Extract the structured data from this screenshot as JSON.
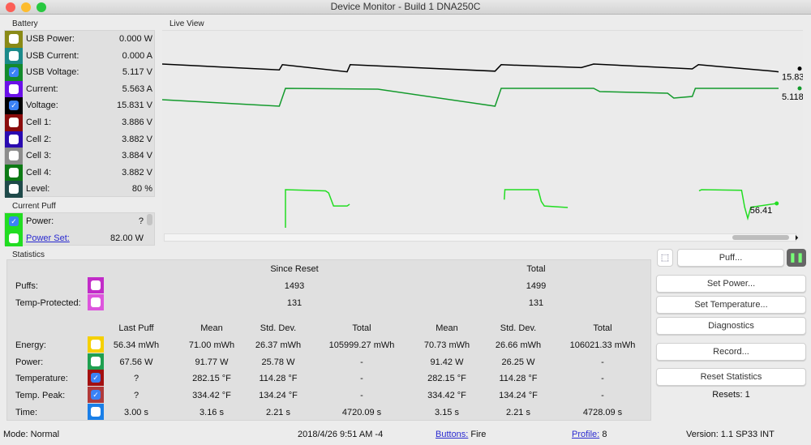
{
  "window": {
    "title": "Device Monitor - Build 1 DNA250C"
  },
  "battery": {
    "title": "Battery",
    "rows": [
      {
        "label": "USB Power:",
        "value": "0.000 W",
        "color": "#8a8a16",
        "checked": false
      },
      {
        "label": "USB Current:",
        "value": "0.000 A",
        "color": "#1b8a8a",
        "checked": false
      },
      {
        "label": "USB Voltage:",
        "value": "5.117 V",
        "color": "#138a2c",
        "checked": true
      },
      {
        "label": "Current:",
        "value": "5.563 A",
        "color": "#6a10e8",
        "checked": false
      },
      {
        "label": "Voltage:",
        "value": "15.831 V",
        "color": "#000000",
        "checked": true
      },
      {
        "label": "Cell 1:",
        "value": "3.886 V",
        "color": "#8a0c0c",
        "checked": false
      },
      {
        "label": "Cell 2:",
        "value": "3.882 V",
        "color": "#2a0ab0",
        "checked": false
      },
      {
        "label": "Cell 3:",
        "value": "3.884 V",
        "color": "#8c8c8c",
        "checked": false
      },
      {
        "label": "Cell 4:",
        "value": "3.882 V",
        "color": "#0d7a15",
        "checked": false
      },
      {
        "label": "Level:",
        "value": "80 %",
        "color": "#1f4a4a",
        "checked": false
      }
    ]
  },
  "current_puff": {
    "title": "Current Puff",
    "rows": [
      {
        "label": "Power:",
        "value": "?",
        "color": "#22dd22",
        "checked": true,
        "link": false
      },
      {
        "label": "Power Set:",
        "value": "82.00 W",
        "color": "#22dd22",
        "checked": false,
        "link": true
      }
    ]
  },
  "live_view": {
    "title": "Live View",
    "labels": {
      "voltage": "15.83",
      "usb_voltage": "5.118",
      "power": "56.41"
    },
    "series": {
      "voltage": {
        "color": "#000000",
        "points": [
          [
            0,
            16.1
          ],
          [
            19,
            15.92
          ],
          [
            19.5,
            16.08
          ],
          [
            30,
            15.86
          ],
          [
            30.5,
            16.08
          ],
          [
            54,
            15.88
          ],
          [
            55,
            16.08
          ],
          [
            68,
            15.99
          ],
          [
            70,
            16.1
          ],
          [
            86,
            15.95
          ],
          [
            87,
            16.08
          ],
          [
            99,
            15.88
          ],
          [
            100,
            15.86
          ]
        ]
      },
      "usb_voltage": {
        "color": "#139a2c",
        "points": [
          [
            0,
            5.048
          ],
          [
            19,
            5.008
          ],
          [
            20,
            5.118
          ],
          [
            35,
            5.113
          ],
          [
            54,
            5.008
          ],
          [
            55,
            5.118
          ],
          [
            70,
            5.118
          ],
          [
            71,
            5.098
          ],
          [
            82,
            5.088
          ],
          [
            83,
            5.058
          ],
          [
            86,
            5.068
          ],
          [
            86.5,
            5.118
          ],
          [
            100,
            5.118
          ]
        ]
      },
      "power": {
        "color": "#22dd22",
        "segments": [
          [
            [
              20,
              14.7
            ],
            [
              20,
              80
            ],
            [
              26.5,
              78
            ],
            [
              27,
              74.5
            ],
            [
              27.8,
              52
            ],
            [
              30,
              52
            ],
            [
              30.4,
              55
            ]
          ],
          [
            [
              55.5,
              63
            ],
            [
              55.6,
              80
            ],
            [
              61,
              80
            ],
            [
              61.5,
              60
            ],
            [
              62,
              52
            ],
            [
              65.8,
              49.5
            ]
          ],
          [
            [
              87.1,
              78
            ],
            [
              87.5,
              80
            ],
            [
              94,
              79
            ],
            [
              94.5,
              50
            ],
            [
              95,
              31
            ],
            [
              95.5,
              50
            ],
            [
              99.7,
              56.41
            ]
          ]
        ]
      }
    }
  },
  "statistics": {
    "title": "Statistics",
    "since_reset": "Since Reset",
    "total": "Total",
    "counts": [
      {
        "label": "Puffs:",
        "color": "#c22cc8",
        "since": "1493",
        "total": "1499"
      },
      {
        "label": "Temp-Protected:",
        "color": "#dd55dd",
        "since": "131",
        "total": "131"
      }
    ],
    "headers": [
      "Last Puff",
      "Mean",
      "Std. Dev.",
      "Total",
      "Mean",
      "Std. Dev.",
      "Total"
    ],
    "rows": [
      {
        "label": "Energy:",
        "color": "#f5d000",
        "checked": false,
        "values": [
          "56.34 mWh",
          "71.00 mWh",
          "26.37 mWh",
          "105999.27 mWh",
          "70.73 mWh",
          "26.66 mWh",
          "106021.33 mWh"
        ]
      },
      {
        "label": "Power:",
        "color": "#1fa050",
        "checked": false,
        "values": [
          "67.56 W",
          "91.77 W",
          "25.78 W",
          "-",
          "91.42 W",
          "26.25 W",
          "-"
        ]
      },
      {
        "label": "Temperature:",
        "color": "#a31010",
        "checked": true,
        "values": [
          "?",
          "282.15 °F",
          "114.28 °F",
          "-",
          "282.15 °F",
          "114.28 °F",
          "-"
        ]
      },
      {
        "label": "Temp. Peak:",
        "color": "#b03a3a",
        "checked": true,
        "values": [
          "?",
          "334.42 °F",
          "134.24 °F",
          "-",
          "334.42 °F",
          "134.24 °F",
          "-"
        ]
      },
      {
        "label": "Time:",
        "color": "#1a7fe8",
        "checked": false,
        "values": [
          "3.00 s",
          "3.16 s",
          "2.21 s",
          "4720.09 s",
          "3.15 s",
          "2.21 s",
          "4728.09 s"
        ]
      }
    ]
  },
  "buttons": {
    "puff": "Puff...",
    "set_power": "Set Power...",
    "set_temperature": "Set Temperature...",
    "diagnostics": "Diagnostics",
    "record": "Record...",
    "reset_statistics": "Reset Statistics",
    "resets": "Resets: 1"
  },
  "status": {
    "mode": "Mode: Normal",
    "datetime": "2018/4/26 9:51 AM -4",
    "buttons_label": "Buttons:",
    "buttons_value": "Fire",
    "profile_label": "Profile:",
    "profile_value": "8",
    "version": "Version: 1.1 SP33 INT"
  }
}
